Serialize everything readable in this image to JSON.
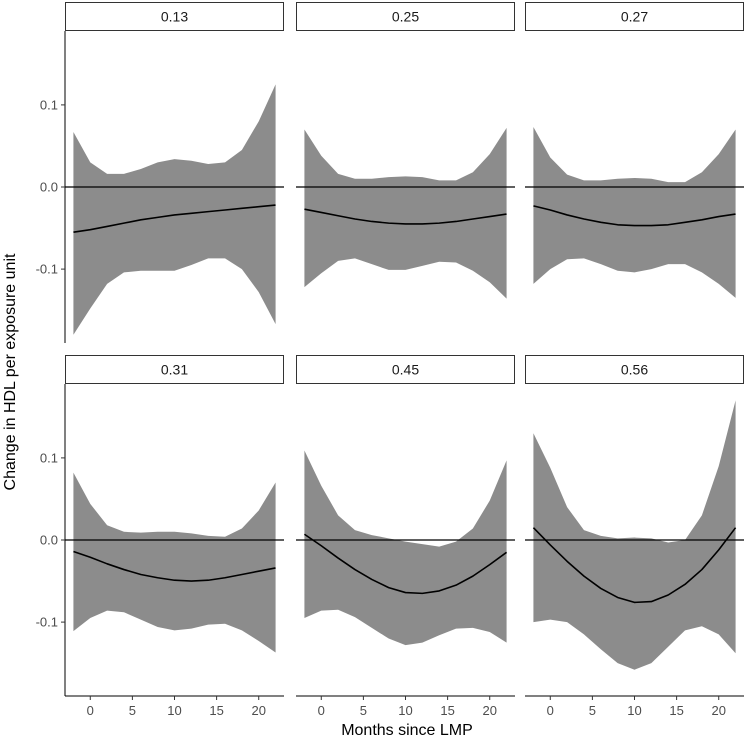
{
  "chart_data": {
    "type": "line",
    "subtype": "faceted line with confidence ribbon",
    "xlabel": "Months since LMP",
    "ylabel": "Change in HDL per exposure unit",
    "xlim": [
      -3,
      23
    ],
    "ylim": [
      -0.19,
      0.19
    ],
    "x_ticks": [
      0,
      5,
      10,
      15,
      20
    ],
    "x_tick_labels": [
      "0",
      "5",
      "10",
      "15",
      "20"
    ],
    "y_ticks": [
      -0.1,
      0.0,
      0.1
    ],
    "y_tick_labels": [
      "-0.1",
      "0.0",
      "0.1"
    ],
    "reference_line_y": 0,
    "x": [
      -2,
      0,
      2,
      4,
      6,
      8,
      10,
      12,
      14,
      16,
      18,
      20,
      22
    ],
    "colors": {
      "ribbon": "#8c8c8c",
      "line": "#000000",
      "strip_border": "#333333"
    },
    "facets": [
      {
        "label": "0.13",
        "estimate": [
          -0.055,
          -0.052,
          -0.048,
          -0.044,
          -0.04,
          -0.037,
          -0.034,
          -0.032,
          -0.03,
          -0.028,
          -0.026,
          -0.024,
          -0.022
        ],
        "upper": [
          0.067,
          0.03,
          0.016,
          0.016,
          0.022,
          0.03,
          0.034,
          0.032,
          0.028,
          0.03,
          0.045,
          0.08,
          0.125
        ],
        "lower": [
          -0.18,
          -0.148,
          -0.118,
          -0.104,
          -0.102,
          -0.102,
          -0.102,
          -0.095,
          -0.087,
          -0.087,
          -0.1,
          -0.128,
          -0.167
        ]
      },
      {
        "label": "0.25",
        "estimate": [
          -0.027,
          -0.031,
          -0.035,
          -0.039,
          -0.042,
          -0.044,
          -0.045,
          -0.045,
          -0.044,
          -0.042,
          -0.039,
          -0.036,
          -0.033
        ],
        "upper": [
          0.07,
          0.038,
          0.016,
          0.01,
          0.01,
          0.012,
          0.013,
          0.012,
          0.008,
          0.008,
          0.018,
          0.04,
          0.072
        ],
        "lower": [
          -0.122,
          -0.105,
          -0.09,
          -0.087,
          -0.094,
          -0.101,
          -0.101,
          -0.096,
          -0.091,
          -0.092,
          -0.102,
          -0.116,
          -0.136
        ]
      },
      {
        "label": "0.27",
        "estimate": [
          -0.023,
          -0.028,
          -0.034,
          -0.039,
          -0.043,
          -0.046,
          -0.047,
          -0.047,
          -0.046,
          -0.043,
          -0.04,
          -0.036,
          -0.033
        ],
        "upper": [
          0.073,
          0.036,
          0.015,
          0.008,
          0.008,
          0.01,
          0.011,
          0.01,
          0.006,
          0.006,
          0.018,
          0.04,
          0.07
        ],
        "lower": [
          -0.118,
          -0.1,
          -0.088,
          -0.087,
          -0.094,
          -0.102,
          -0.104,
          -0.1,
          -0.094,
          -0.094,
          -0.104,
          -0.118,
          -0.135
        ]
      },
      {
        "label": "0.31",
        "estimate": [
          -0.014,
          -0.021,
          -0.029,
          -0.036,
          -0.042,
          -0.046,
          -0.049,
          -0.05,
          -0.049,
          -0.046,
          -0.042,
          -0.038,
          -0.034
        ],
        "upper": [
          0.082,
          0.044,
          0.018,
          0.01,
          0.009,
          0.01,
          0.01,
          0.008,
          0.005,
          0.004,
          0.014,
          0.036,
          0.07
        ],
        "lower": [
          -0.111,
          -0.095,
          -0.086,
          -0.088,
          -0.097,
          -0.106,
          -0.11,
          -0.108,
          -0.103,
          -0.102,
          -0.11,
          -0.123,
          -0.137
        ]
      },
      {
        "label": "0.45",
        "estimate": [
          0.007,
          -0.007,
          -0.022,
          -0.036,
          -0.048,
          -0.058,
          -0.064,
          -0.065,
          -0.062,
          -0.055,
          -0.044,
          -0.03,
          -0.015
        ],
        "upper": [
          0.109,
          0.066,
          0.03,
          0.012,
          0.006,
          0.002,
          -0.002,
          -0.005,
          -0.008,
          -0.002,
          0.014,
          0.048,
          0.097
        ],
        "lower": [
          -0.095,
          -0.086,
          -0.085,
          -0.094,
          -0.107,
          -0.12,
          -0.128,
          -0.125,
          -0.116,
          -0.108,
          -0.107,
          -0.112,
          -0.125
        ]
      },
      {
        "label": "0.56",
        "estimate": [
          0.015,
          -0.006,
          -0.026,
          -0.044,
          -0.059,
          -0.07,
          -0.076,
          -0.075,
          -0.067,
          -0.054,
          -0.036,
          -0.012,
          0.015
        ],
        "upper": [
          0.13,
          0.088,
          0.04,
          0.012,
          0.005,
          0.002,
          0.003,
          0.002,
          -0.003,
          0.0,
          0.03,
          0.09,
          0.17
        ],
        "lower": [
          -0.1,
          -0.097,
          -0.1,
          -0.115,
          -0.133,
          -0.15,
          -0.158,
          -0.15,
          -0.13,
          -0.11,
          -0.105,
          -0.115,
          -0.138
        ]
      }
    ]
  }
}
